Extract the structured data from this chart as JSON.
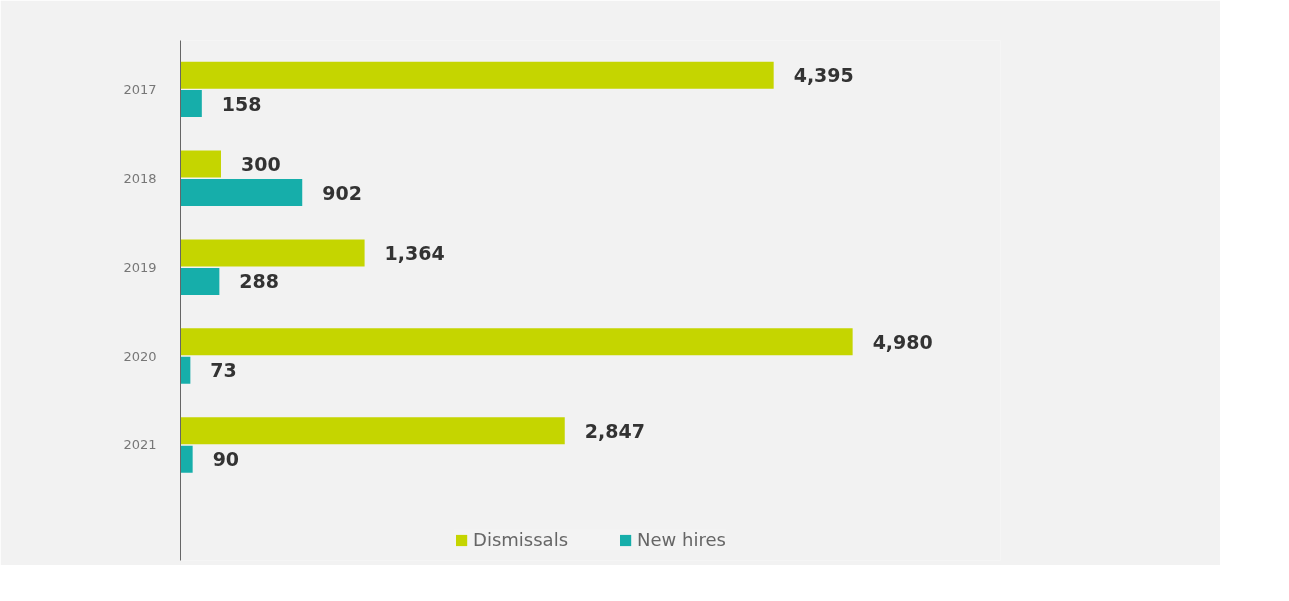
{
  "chart_data": {
    "type": "bar",
    "orientation": "horizontal",
    "categories": [
      "2017",
      "2018",
      "2019",
      "2020",
      "2021"
    ],
    "series": [
      {
        "name": "Dismissals",
        "color": "#c5d500",
        "values": [
          4395,
          300,
          1364,
          4980,
          2847
        ],
        "value_labels": [
          "4,395",
          "300",
          "1,364",
          "4,980",
          "2,847"
        ]
      },
      {
        "name": "New hires",
        "color": "#16aeaa",
        "values": [
          158,
          902,
          288,
          73,
          90
        ],
        "value_labels": [
          "158",
          "902",
          "288",
          "73",
          "90"
        ]
      }
    ],
    "legend": "bottom",
    "grid": false
  }
}
